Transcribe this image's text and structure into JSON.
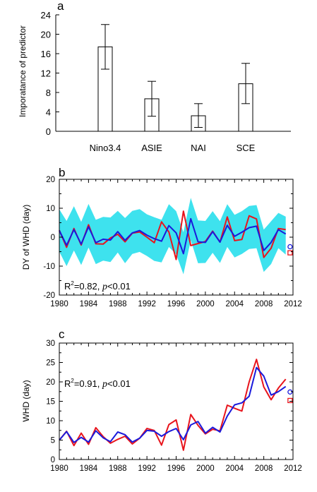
{
  "chart_data": [
    {
      "panel": "a",
      "type": "bar",
      "ylabel": "Imporatance of predictor",
      "categories": [
        "Nino3.4",
        "ASIE",
        "NAI",
        "SCE"
      ],
      "values": [
        17.4,
        6.7,
        3.2,
        9.8
      ],
      "error_bars": [
        [
          12.8,
          22.0
        ],
        [
          3.1,
          10.3
        ],
        [
          0.8,
          5.7
        ],
        [
          5.7,
          14.0
        ]
      ],
      "ylim": [
        0,
        24
      ],
      "yticks": [
        0,
        4,
        8,
        12,
        16,
        20,
        24
      ],
      "colors": {
        "bar_fill": "#ffffff",
        "bar_edge": "#000000"
      }
    },
    {
      "panel": "b",
      "type": "line",
      "ylabel": "DY of WHD (day)",
      "ylim": [
        -20,
        20
      ],
      "yticks": [
        -20,
        -10,
        0,
        10,
        20
      ],
      "xlim": [
        1980,
        2012
      ],
      "xticks": [
        1980,
        1984,
        1988,
        1992,
        1996,
        2000,
        2004,
        2008,
        2012
      ],
      "x": [
        1980,
        1981,
        1982,
        1983,
        1984,
        1985,
        1986,
        1987,
        1988,
        1989,
        1990,
        1991,
        1992,
        1993,
        1994,
        1995,
        1996,
        1997,
        1998,
        1999,
        2000,
        2001,
        2002,
        2003,
        2004,
        2005,
        2006,
        2007,
        2008,
        2009,
        2010,
        2011
      ],
      "series": [
        {
          "role": "observed",
          "color": "#e8141c",
          "values": [
            2.4,
            -3.5,
            3.0,
            -2.7,
            4.3,
            -2.3,
            -2.4,
            -0.3,
            1.0,
            -1.6,
            1.4,
            1.8,
            0,
            -1.9,
            5.3,
            1.8,
            -7.7,
            9.0,
            -2.9,
            -2.2,
            -1.5,
            2.1,
            -1.7,
            7.0,
            -1.2,
            -0.8,
            7.4,
            6.3,
            -7.0,
            -3.8,
            3.0,
            2.6
          ]
        },
        {
          "role": "predicted",
          "color": "#1a1adc",
          "values": [
            2.3,
            -2.8,
            2.6,
            -2.4,
            3.6,
            -1.9,
            -0.7,
            -1.0,
            1.9,
            -1.1,
            1.5,
            2.3,
            0.7,
            -0.5,
            -1.4,
            4.0,
            1.5,
            -5.7,
            6.4,
            -1.6,
            -1.8,
            1.9,
            -1.7,
            4.1,
            0.3,
            1.7,
            3.3,
            3.8,
            -4.6,
            -1.8,
            2.6,
            1.1
          ]
        }
      ],
      "uncertainty_band": {
        "color": "#3ee2ee",
        "upper": [
          9.6,
          5.6,
          10.7,
          5.3,
          11.5,
          6.0,
          7.0,
          6.8,
          9.1,
          6.6,
          9.1,
          9.7,
          7.9,
          6.9,
          6.0,
          11.4,
          9.0,
          1.7,
          13.6,
          5.8,
          5.6,
          9.0,
          5.5,
          11.4,
          7.7,
          9.0,
          10.8,
          11.1,
          2.6,
          5.5,
          8.4,
          7.1
        ],
        "lower": [
          -5.0,
          -10.0,
          -4.6,
          -9.6,
          -3.6,
          -9.3,
          -8.1,
          -8.6,
          -5.3,
          -9.0,
          -5.8,
          -5.1,
          -6.5,
          -8.2,
          -8.7,
          -3.4,
          -5.9,
          -12.8,
          -1.1,
          -9.0,
          -8.9,
          -5.4,
          -8.9,
          -3.4,
          -7.0,
          -5.8,
          -4.1,
          -3.8,
          -12.0,
          -9.3,
          -3.8,
          -6.0
        ]
      },
      "markers": [
        {
          "shape": "circle",
          "color": "#1a1adc",
          "x": 2011.6,
          "y": -3.3
        },
        {
          "shape": "square",
          "color": "#e8141c",
          "x": 2011.6,
          "y": -5.4
        }
      ],
      "annotation": {
        "r2": "R",
        "r2_sup": "2",
        "r2_val": "=0.82, ",
        "p_sym": "p",
        "p_rest": "<0.01"
      }
    },
    {
      "panel": "c",
      "type": "line",
      "ylabel": "WHD (day)",
      "ylim": [
        0,
        30
      ],
      "yticks": [
        0,
        5,
        10,
        15,
        20,
        25,
        30
      ],
      "xlim": [
        1980,
        2012
      ],
      "xticks": [
        1980,
        1984,
        1988,
        1992,
        1996,
        2000,
        2004,
        2008,
        2012
      ],
      "x": [
        1980,
        1981,
        1982,
        1983,
        1984,
        1985,
        1986,
        1987,
        1988,
        1989,
        1990,
        1991,
        1992,
        1993,
        1994,
        1995,
        1996,
        1997,
        1998,
        1999,
        2000,
        2001,
        2002,
        2003,
        2004,
        2005,
        2006,
        2007,
        2008,
        2009,
        2010,
        2011
      ],
      "series": [
        {
          "role": "observed",
          "color": "#e8141c",
          "values": [
            5.0,
            7.3,
            3.6,
            6.8,
            3.9,
            8.2,
            5.9,
            4.2,
            5.2,
            6.0,
            4.0,
            5.5,
            8.0,
            7.5,
            3.7,
            9.0,
            10.2,
            2.4,
            11.6,
            8.8,
            6.6,
            7.8,
            7.4,
            14.0,
            13.2,
            12.5,
            20.0,
            25.8,
            18.7,
            15.4,
            18.4,
            20.7
          ]
        },
        {
          "role": "predicted",
          "color": "#1a1adc",
          "values": [
            5.0,
            7.2,
            4.4,
            5.7,
            4.5,
            7.4,
            5.6,
            4.6,
            7.1,
            6.4,
            4.5,
            5.5,
            7.5,
            7.3,
            6.0,
            7.2,
            8.0,
            5.1,
            8.9,
            9.8,
            6.8,
            8.3,
            7.1,
            11.2,
            14.1,
            14.6,
            16.3,
            23.7,
            21.5,
            16.6,
            17.5,
            18.8
          ]
        }
      ],
      "markers": [
        {
          "shape": "circle",
          "color": "#1a1adc",
          "x": 2011.6,
          "y": 17.4
        },
        {
          "shape": "square",
          "color": "#e8141c",
          "x": 2011.6,
          "y": 15.2
        }
      ],
      "annotation": {
        "r2": "R",
        "r2_sup": "2",
        "r2_val": "=0.91, ",
        "p_sym": "p",
        "p_rest": "<0.01"
      }
    }
  ]
}
